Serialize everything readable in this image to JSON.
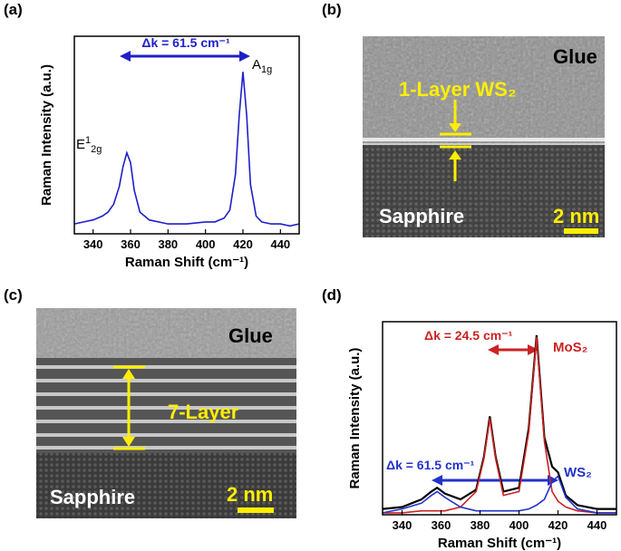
{
  "chart_data": [
    {
      "type": "line",
      "label": "(a)",
      "xlabel": "Raman Shift (cm⁻¹)",
      "ylabel": "Raman Intensity (a.u.)",
      "x": [
        330,
        335,
        340,
        345,
        348,
        351,
        354,
        356,
        358,
        360,
        362,
        365,
        370,
        380,
        390,
        400,
        405,
        410,
        413,
        416,
        418,
        420,
        422,
        424,
        427,
        430,
        435,
        440,
        445,
        450
      ],
      "series": [
        {
          "color": "#1f1fc8",
          "values": [
            0.05,
            0.06,
            0.07,
            0.09,
            0.11,
            0.15,
            0.24,
            0.34,
            0.41,
            0.36,
            0.22,
            0.11,
            0.07,
            0.05,
            0.05,
            0.06,
            0.06,
            0.08,
            0.12,
            0.3,
            0.6,
            0.82,
            0.6,
            0.25,
            0.09,
            0.06,
            0.05,
            0.05,
            0.04,
            0.05
          ]
        }
      ],
      "xlim": [
        330,
        450
      ],
      "xticks": [
        340,
        360,
        380,
        400,
        420,
        440
      ],
      "ylim": [
        0,
        1
      ],
      "annotations": {
        "shift": "Δk = 61.5 cm⁻¹",
        "a1g": {
          "base": "A",
          "sub": "1g"
        },
        "e2g": {
          "base": "E",
          "sup": "1",
          "sub": "2g"
        }
      }
    },
    {
      "type": "line",
      "label": "(d)",
      "xlabel": "Raman Shift (cm⁻¹)",
      "ylabel": "Raman Intensity (a.u.)",
      "x": [
        330,
        340,
        350,
        355,
        358,
        362,
        370,
        378,
        382,
        385,
        388,
        392,
        400,
        405,
        409,
        413,
        417,
        420,
        424,
        430,
        440,
        450
      ],
      "series": [
        {
          "color": "#000000",
          "values": [
            0.03,
            0.04,
            0.08,
            0.12,
            0.14,
            0.11,
            0.08,
            0.13,
            0.3,
            0.51,
            0.3,
            0.12,
            0.14,
            0.45,
            0.93,
            0.4,
            0.25,
            0.22,
            0.1,
            0.05,
            0.03,
            0.03
          ]
        },
        {
          "color": "#cc2222",
          "values": [
            0.01,
            0.01,
            0.02,
            0.02,
            0.02,
            0.02,
            0.04,
            0.12,
            0.29,
            0.5,
            0.29,
            0.1,
            0.12,
            0.43,
            0.92,
            0.38,
            0.12,
            0.07,
            0.04,
            0.02,
            0.01,
            0.01
          ]
        },
        {
          "color": "#2233cc",
          "values": [
            0.01,
            0.03,
            0.06,
            0.1,
            0.12,
            0.09,
            0.04,
            0.02,
            0.02,
            0.02,
            0.02,
            0.02,
            0.02,
            0.03,
            0.05,
            0.08,
            0.17,
            0.2,
            0.09,
            0.03,
            0.01,
            0.01
          ]
        }
      ],
      "xlim": [
        330,
        450
      ],
      "xticks": [
        340,
        360,
        380,
        400,
        420,
        440
      ],
      "ylim": [
        0,
        1
      ],
      "annotations": {
        "mos2_shift": "Δk = 24.5 cm⁻¹",
        "mos2": "MoS₂",
        "ws2_shift": "Δk = 61.5 cm⁻¹",
        "ws2": "WS₂"
      }
    }
  ],
  "images": [
    {
      "label": "(b)",
      "top": "Glue",
      "layer": "1-Layer WS₂",
      "bottom": "Sapphire",
      "scale": "2 nm"
    },
    {
      "label": "(c)",
      "top": "Glue",
      "layer": "7-Layer",
      "bottom": "Sapphire",
      "scale": "2 nm"
    }
  ]
}
